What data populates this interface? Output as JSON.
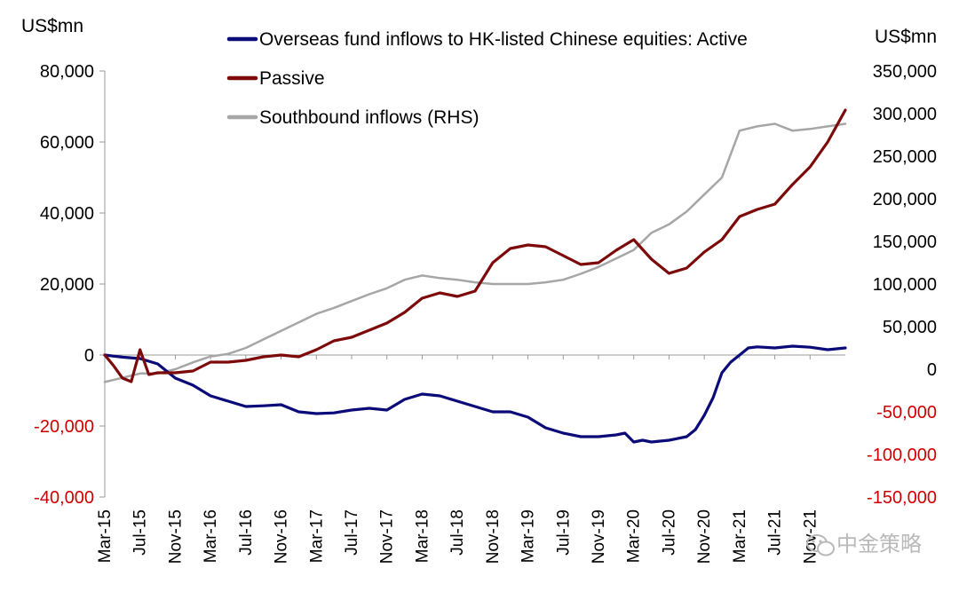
{
  "chart_data": {
    "type": "line",
    "left_unit": "US$mn",
    "right_unit": "US$mn",
    "left_axis": {
      "ylim": [
        -40000,
        80000
      ],
      "ticks": [
        80000,
        60000,
        40000,
        20000,
        0,
        -20000,
        -40000
      ],
      "tick_labels": [
        "80,000",
        "60,000",
        "40,000",
        "20,000",
        "0",
        "-20,000",
        "-40,000"
      ],
      "negative_color": "#cc0000"
    },
    "right_axis": {
      "ylim": [
        -150000,
        350000
      ],
      "ticks": [
        350000,
        300000,
        250000,
        200000,
        150000,
        100000,
        50000,
        0,
        -50000,
        -100000,
        -150000
      ],
      "tick_labels": [
        "350,000",
        "300,000",
        "250,000",
        "200,000",
        "150,000",
        "100,000",
        "50,000",
        "0",
        "-50,000",
        "-100,000",
        "-150,000"
      ],
      "negative_color": "#cc0000"
    },
    "x_axis": {
      "range": [
        "2015-03",
        "2022-03"
      ],
      "tick_labels": [
        "Mar-15",
        "Jul-15",
        "Nov-15",
        "Mar-16",
        "Jul-16",
        "Nov-16",
        "Mar-17",
        "Jul-17",
        "Nov-17",
        "Mar-18",
        "Jul-18",
        "Nov-18",
        "Mar-19",
        "Jul-19",
        "Nov-19",
        "Mar-20",
        "Jul-20",
        "Nov-20",
        "Mar-21",
        "Jul-21",
        "Nov-21"
      ]
    },
    "grid": false,
    "legend_position": "top",
    "series": [
      {
        "name": "Overseas fund inflows to HK-listed Chinese equities: Active",
        "axis": "left",
        "color": "#0a0a78",
        "x": [
          "2015-03",
          "2015-05",
          "2015-07",
          "2015-09",
          "2015-11",
          "2016-01",
          "2016-03",
          "2016-05",
          "2016-07",
          "2016-09",
          "2016-11",
          "2017-01",
          "2017-03",
          "2017-05",
          "2017-07",
          "2017-09",
          "2017-11",
          "2018-01",
          "2018-03",
          "2018-05",
          "2018-07",
          "2018-09",
          "2018-11",
          "2019-01",
          "2019-03",
          "2019-05",
          "2019-07",
          "2019-09",
          "2019-11",
          "2020-01",
          "2020-02",
          "2020-03",
          "2020-04",
          "2020-05",
          "2020-07",
          "2020-09",
          "2020-10",
          "2020-11",
          "2020-12",
          "2021-01",
          "2021-02",
          "2021-03",
          "2021-04",
          "2021-05",
          "2021-07",
          "2021-09",
          "2021-11",
          "2022-01",
          "2022-03"
        ],
        "values": [
          0,
          -600,
          -1000,
          -2500,
          -6500,
          -8500,
          -11500,
          -13000,
          -14500,
          -14300,
          -14000,
          -16000,
          -16500,
          -16300,
          -15500,
          -15000,
          -15500,
          -12500,
          -11000,
          -11500,
          -13000,
          -14500,
          -16000,
          -16000,
          -17500,
          -20500,
          -22000,
          -23000,
          -23000,
          -22500,
          -22000,
          -24500,
          -24000,
          -24500,
          -24000,
          -23000,
          -21000,
          -17000,
          -12000,
          -5000,
          -2000,
          0,
          2000,
          2300,
          2000,
          2500,
          2200,
          1500,
          2000
        ]
      },
      {
        "name": "Passive",
        "axis": "left",
        "color": "#7d0a0a",
        "x": [
          "2015-03",
          "2015-04",
          "2015-05",
          "2015-06",
          "2015-07",
          "2015-08",
          "2015-09",
          "2015-11",
          "2016-01",
          "2016-03",
          "2016-05",
          "2016-07",
          "2016-09",
          "2016-11",
          "2017-01",
          "2017-03",
          "2017-05",
          "2017-07",
          "2017-09",
          "2017-11",
          "2018-01",
          "2018-03",
          "2018-05",
          "2018-07",
          "2018-09",
          "2018-11",
          "2019-01",
          "2019-03",
          "2019-05",
          "2019-07",
          "2019-09",
          "2019-11",
          "2020-01",
          "2020-03",
          "2020-05",
          "2020-07",
          "2020-09",
          "2020-11",
          "2021-01",
          "2021-03",
          "2021-05",
          "2021-07",
          "2021-09",
          "2021-11",
          "2022-01",
          "2022-03"
        ],
        "values": [
          0,
          -3000,
          -6500,
          -7500,
          1500,
          -5500,
          -5000,
          -5000,
          -4500,
          -2000,
          -2000,
          -1500,
          -500,
          0,
          -500,
          1500,
          4000,
          5000,
          7000,
          9000,
          12000,
          16000,
          17500,
          16500,
          18000,
          26000,
          30000,
          31000,
          30500,
          28000,
          25500,
          26000,
          29500,
          32500,
          27000,
          23000,
          24500,
          29000,
          32500,
          39000,
          41000,
          42500,
          48000,
          53000,
          60000,
          69000
        ]
      },
      {
        "name": "Southbound inflows (RHS)",
        "axis": "right",
        "color": "#a6a6a6",
        "x": [
          "2015-03",
          "2015-05",
          "2015-07",
          "2015-09",
          "2015-11",
          "2016-01",
          "2016-03",
          "2016-05",
          "2016-07",
          "2016-09",
          "2016-11",
          "2017-01",
          "2017-03",
          "2017-05",
          "2017-07",
          "2017-09",
          "2017-11",
          "2018-01",
          "2018-03",
          "2018-05",
          "2018-07",
          "2018-09",
          "2018-11",
          "2019-01",
          "2019-03",
          "2019-05",
          "2019-07",
          "2019-09",
          "2019-11",
          "2020-01",
          "2020-03",
          "2020-05",
          "2020-07",
          "2020-09",
          "2020-11",
          "2021-01",
          "2021-03",
          "2021-05",
          "2021-07",
          "2021-09",
          "2021-11",
          "2022-01",
          "2022-03"
        ],
        "values": [
          -15000,
          -10000,
          -5000,
          -5000,
          0,
          8000,
          15000,
          18000,
          25000,
          35000,
          45000,
          55000,
          65000,
          72000,
          80000,
          88000,
          95000,
          105000,
          110000,
          107000,
          105000,
          102000,
          100000,
          100000,
          100000,
          102000,
          105000,
          112000,
          120000,
          130000,
          140000,
          160000,
          170000,
          185000,
          205000,
          225000,
          280000,
          285000,
          288000,
          280000,
          282000,
          285000,
          288000
        ]
      }
    ],
    "watermark": "中金策略"
  }
}
